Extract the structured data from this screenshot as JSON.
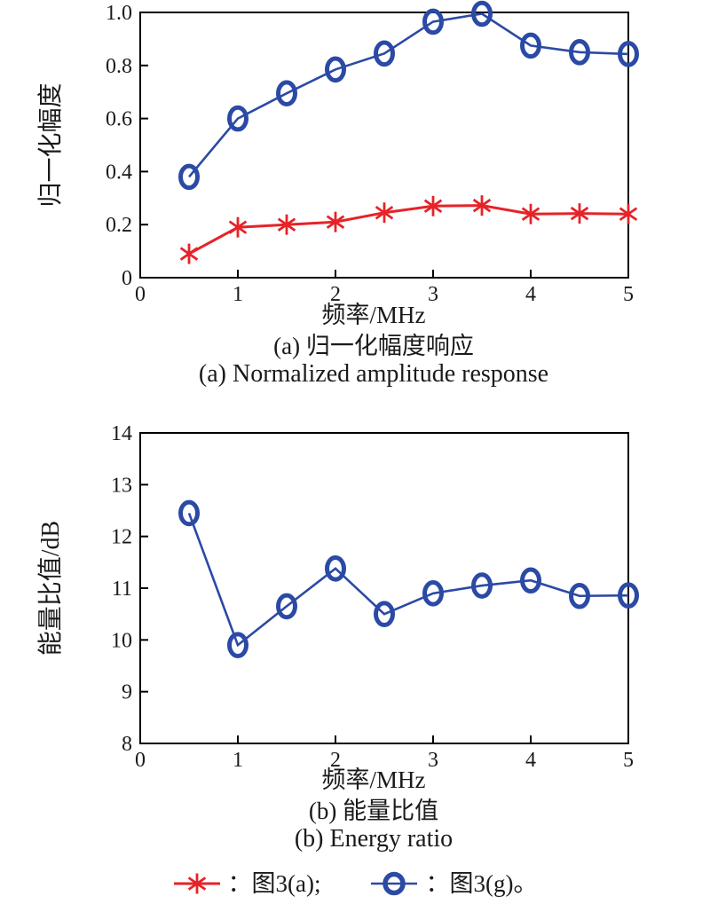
{
  "page": {
    "background": "#ffffff"
  },
  "colors": {
    "axis": "#000000",
    "red_series": "#e62328",
    "blue_series": "#2b4aa5"
  },
  "chart_data": [
    {
      "type": "line",
      "title": "",
      "xlabel": "频率/MHz",
      "ylabel": "归一化幅度",
      "caption_zh": "(a) 归一化幅度响应",
      "caption_en": "(a) Normalized amplitude response",
      "xlim": [
        0,
        5
      ],
      "ylim": [
        0,
        1.0
      ],
      "grid": false,
      "legend_position": "none",
      "xticks": {
        "values": [
          0,
          1,
          2,
          3,
          4,
          5
        ],
        "labels": [
          "0",
          "1",
          "2",
          "3",
          "4",
          "5"
        ]
      },
      "yticks": {
        "values": [
          0,
          0.2,
          0.4,
          0.6,
          0.8,
          1.0
        ],
        "labels": [
          "0",
          "0.2",
          "0.4",
          "0.6",
          "0.8",
          "1.0"
        ]
      },
      "x": [
        0.5,
        1,
        1.5,
        2,
        2.5,
        3,
        3.5,
        4,
        4.5,
        5
      ],
      "series": [
        {
          "name": "图3(a)",
          "marker": "asterisk",
          "color": "#e62328",
          "values": [
            0.09,
            0.19,
            0.2,
            0.21,
            0.245,
            0.27,
            0.272,
            0.24,
            0.242,
            0.24
          ]
        },
        {
          "name": "图3(g)",
          "marker": "circle",
          "color": "#2b4aa5",
          "values": [
            0.38,
            0.6,
            0.695,
            0.785,
            0.845,
            0.965,
            0.995,
            0.875,
            0.85,
            0.843
          ]
        }
      ]
    },
    {
      "type": "line",
      "title": "",
      "xlabel": "频率/MHz",
      "ylabel": "能量比值/dB",
      "caption_zh": "(b) 能量比值",
      "caption_en": "(b) Energy ratio",
      "xlim": [
        0,
        5
      ],
      "ylim": [
        8,
        14
      ],
      "grid": false,
      "legend_position": "none",
      "xticks": {
        "values": [
          0,
          1,
          2,
          3,
          4,
          5
        ],
        "labels": [
          "0",
          "1",
          "2",
          "3",
          "4",
          "5"
        ]
      },
      "yticks": {
        "values": [
          8,
          9,
          10,
          11,
          12,
          13,
          14
        ],
        "labels": [
          "8",
          "9",
          "10",
          "11",
          "12",
          "13",
          "14"
        ]
      },
      "x": [
        0.5,
        1,
        1.5,
        2,
        2.5,
        3,
        3.5,
        4,
        4.5,
        5
      ],
      "series": [
        {
          "name": "图3(g)",
          "marker": "circle",
          "color": "#2b4aa5",
          "values": [
            12.45,
            9.9,
            10.65,
            11.38,
            10.5,
            10.9,
            11.05,
            11.15,
            10.85,
            10.86
          ]
        }
      ]
    }
  ],
  "legend": {
    "items": [
      {
        "label": "：图3(a);",
        "marker": "asterisk",
        "color": "#e62328"
      },
      {
        "label": "：图3(g)。",
        "marker": "circle",
        "color": "#2b4aa5"
      }
    ]
  }
}
